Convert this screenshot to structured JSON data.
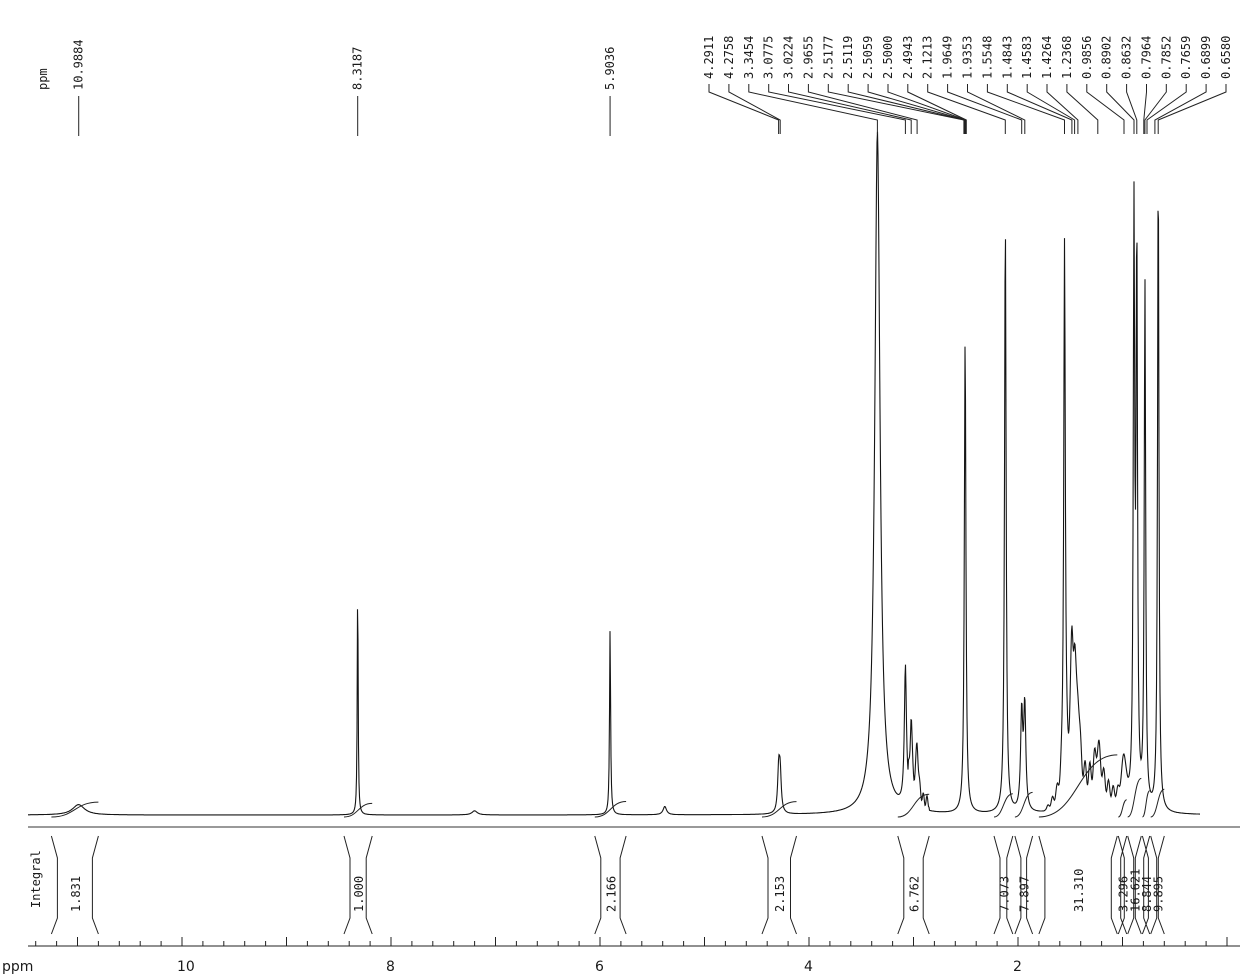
{
  "chart_data": {
    "type": "line",
    "title": "",
    "unit_label_top": "ppm",
    "xlabel": "ppm",
    "integral_label": "Integral",
    "x_axis": {
      "direction": "reversed",
      "range": [
        12.1,
        0.0
      ],
      "tick_labels": [
        "10",
        "8",
        "6",
        "4",
        "2"
      ],
      "tick_values": [
        10,
        8,
        6,
        4,
        2
      ]
    },
    "peak_labels_isolated": [
      "10.9884",
      "8.3187",
      "5.9036"
    ],
    "peak_labels_grouped": [
      "4.2911",
      "4.2758",
      "3.3454",
      "3.0775",
      "3.0224",
      "2.9655",
      "2.5177",
      "2.5119",
      "2.5059",
      "2.5000",
      "2.4943",
      "2.1213",
      "1.9649",
      "1.9353",
      "1.5548",
      "1.4843",
      "1.4583",
      "1.4264",
      "1.2368",
      "0.9856",
      "0.8902",
      "0.8632",
      "0.7964",
      "0.7852",
      "0.7659",
      "0.6899",
      "0.6580"
    ],
    "peaks": [
      {
        "ppm": 10.99,
        "height": 0.015,
        "width": 0.07
      },
      {
        "ppm": 8.3187,
        "height": 0.34,
        "width": 0.005
      },
      {
        "ppm": 7.2,
        "height": 0.006,
        "width": 0.03
      },
      {
        "ppm": 5.9036,
        "height": 0.27,
        "width": 0.006
      },
      {
        "ppm": 5.38,
        "height": 0.012,
        "width": 0.02
      },
      {
        "ppm": 4.29,
        "height": 0.06,
        "width": 0.012
      },
      {
        "ppm": 4.276,
        "height": 0.055,
        "width": 0.012
      },
      {
        "ppm": 3.3454,
        "height": 0.99,
        "width": 0.03
      },
      {
        "ppm": 3.0775,
        "height": 0.2,
        "width": 0.012
      },
      {
        "ppm": 3.0224,
        "height": 0.11,
        "width": 0.012
      },
      {
        "ppm": 2.9655,
        "height": 0.08,
        "width": 0.015
      },
      {
        "ppm": 2.5059,
        "height": 0.69,
        "width": 0.009
      },
      {
        "ppm": 2.1213,
        "height": 0.86,
        "width": 0.009
      },
      {
        "ppm": 1.9649,
        "height": 0.14,
        "width": 0.012
      },
      {
        "ppm": 1.9353,
        "height": 0.15,
        "width": 0.012
      },
      {
        "ppm": 1.5548,
        "height": 0.8,
        "width": 0.009
      },
      {
        "ppm": 1.4843,
        "height": 0.17,
        "width": 0.018
      },
      {
        "ppm": 1.4583,
        "height": 0.12,
        "width": 0.018
      },
      {
        "ppm": 1.4264,
        "height": 0.1,
        "width": 0.02
      },
      {
        "ppm": 1.2368,
        "height": 0.06,
        "width": 0.04
      },
      {
        "ppm": 0.9856,
        "height": 0.07,
        "width": 0.03
      },
      {
        "ppm": 0.8902,
        "height": 0.84,
        "width": 0.008
      },
      {
        "ppm": 0.8632,
        "height": 0.8,
        "width": 0.008
      },
      {
        "ppm": 0.7852,
        "height": 0.76,
        "width": 0.008
      },
      {
        "ppm": 0.658,
        "height": 0.94,
        "width": 0.008
      }
    ],
    "integrals": [
      {
        "from": 11.25,
        "to": 10.8,
        "value": "1.831"
      },
      {
        "from": 8.45,
        "to": 8.18,
        "value": "1.000"
      },
      {
        "from": 6.05,
        "to": 5.75,
        "value": "2.166"
      },
      {
        "from": 4.45,
        "to": 4.12,
        "value": "2.153"
      },
      {
        "from": 3.15,
        "to": 2.85,
        "value": "6.762"
      },
      {
        "from": 2.23,
        "to": 2.05,
        "value": "7.073"
      },
      {
        "from": 2.03,
        "to": 1.86,
        "value": "7.897"
      },
      {
        "from": 1.8,
        "to": 1.05,
        "value": "31.310"
      },
      {
        "from": 1.04,
        "to": 0.96,
        "value": "3.296"
      },
      {
        "from": 0.95,
        "to": 0.82,
        "value": "16.621"
      },
      {
        "from": 0.81,
        "to": 0.74,
        "value": "8.844"
      },
      {
        "from": 0.73,
        "to": 0.6,
        "value": "9.895"
      }
    ]
  }
}
